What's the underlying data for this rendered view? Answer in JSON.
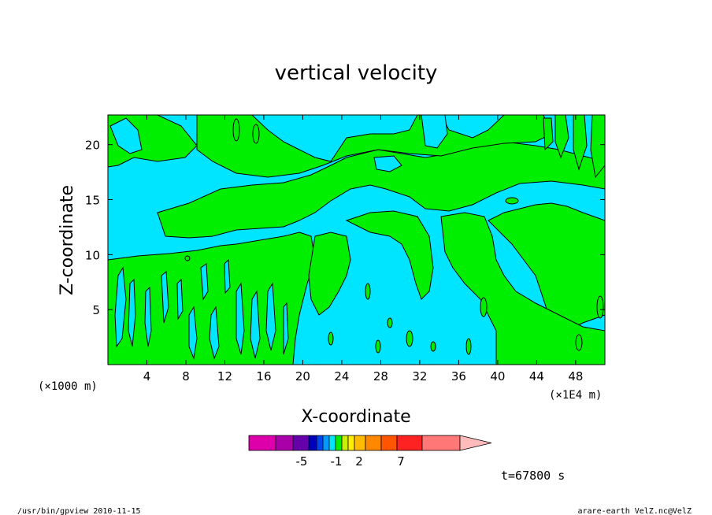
{
  "chart_data": {
    "type": "heatmap",
    "title": "vertical velocity",
    "xlabel": "X-coordinate",
    "ylabel": "Z-coordinate",
    "x_unit_left": "(×1000 m)",
    "x_unit_right": "(×1E4 m)",
    "x_ticks": [
      "4",
      "8",
      "12",
      "16",
      "20",
      "24",
      "28",
      "32",
      "36",
      "40",
      "44",
      "48"
    ],
    "x_tick_values": [
      4,
      8,
      12,
      16,
      20,
      24,
      28,
      32,
      36,
      40,
      44,
      48
    ],
    "y_ticks": [
      "5",
      "10",
      "15",
      "20"
    ],
    "y_tick_values": [
      5,
      10,
      15,
      20
    ],
    "xlim": [
      0,
      51
    ],
    "ylim": [
      0,
      22.7
    ],
    "field_colors": {
      "positive": "#00ee00",
      "negative": "#00e5ff"
    },
    "colorbar": {
      "colors": [
        "#dd00aa",
        "#aa00aa",
        "#6600aa",
        "#0000bb",
        "#0044ee",
        "#0099ff",
        "#00e5ff",
        "#00ee00",
        "#ccee00",
        "#ffee00",
        "#ffbb00",
        "#ff8800",
        "#ff5500",
        "#ff2222",
        "#ff7777",
        "#ffbbbb"
      ],
      "labels": [
        "-5",
        "-1",
        "2",
        "7"
      ]
    },
    "time_label": "t=67800 s"
  },
  "footer": {
    "left": "/usr/bin/gpview   2010-11-15",
    "right": "arare-earth_VelZ.nc@VelZ"
  }
}
